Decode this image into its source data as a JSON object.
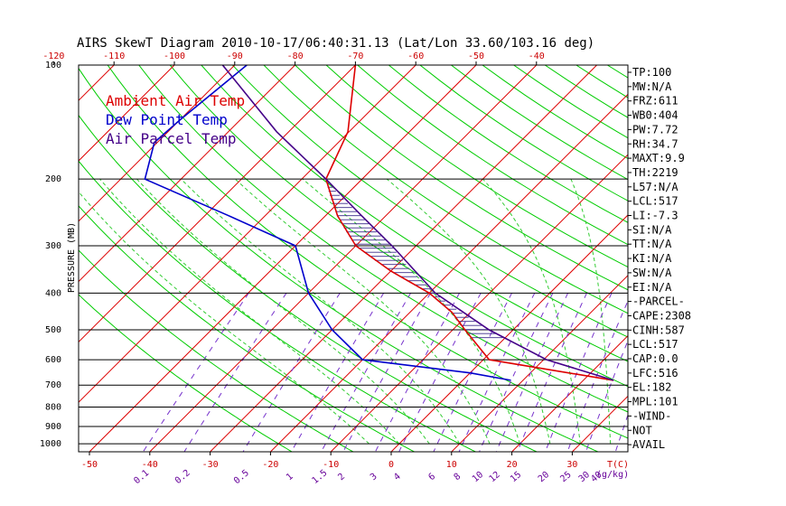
{
  "chart_data": {
    "type": "line",
    "title": "AIRS SkewT Diagram 2010-10-17/06:40:31.13 (Lat/Lon 33.60/103.16 deg)",
    "ylabel": "PRESSURE (MB)",
    "xlabel": "T(C)",
    "mixing_ratio_unit": "(g/kg)",
    "pressure_ticks": [
      "100",
      "200",
      "300",
      "400",
      "500",
      "600",
      "700",
      "800",
      "900",
      "1000"
    ],
    "pressure_values": [
      100,
      200,
      300,
      400,
      500,
      600,
      700,
      800,
      900,
      1000
    ],
    "top_temp_ticks": [
      "-120",
      "-110",
      "-100",
      "-90",
      "-80",
      "-70",
      "-60",
      "-50",
      "-40"
    ],
    "top_temp_values": [
      -120,
      -110,
      -100,
      -90,
      -80,
      -70,
      -60,
      -50,
      -40
    ],
    "bottom_temp_ticks": [
      "-50",
      "-40",
      "-30",
      "-20",
      "-10",
      "0",
      "10",
      "20",
      "30"
    ],
    "bottom_temp_values": [
      -50,
      -40,
      -30,
      -20,
      -10,
      0,
      10,
      20,
      30
    ],
    "mixing_ratio_labels": [
      "0.1",
      "0.2",
      "0.5",
      "1",
      "1.5",
      "2",
      "3",
      "4",
      "6",
      "8",
      "10",
      "12",
      "15",
      "20",
      "25",
      "30",
      "40"
    ],
    "legend": [
      {
        "label": "Ambient Air Temp",
        "color": "#dd0000"
      },
      {
        "label": "Dew Point Temp",
        "color": "#0000cc"
      },
      {
        "label": "Air Parcel Temp",
        "color": "#440088"
      }
    ],
    "series": [
      {
        "name": "Ambient Air Temp",
        "color": "#dd0000",
        "points": [
          {
            "p": 100,
            "t": -70.0
          },
          {
            "p": 150,
            "t": -60.2
          },
          {
            "p": 200,
            "t": -56.0
          },
          {
            "p": 250,
            "t": -48.0
          },
          {
            "p": 300,
            "t": -40.0
          },
          {
            "p": 350,
            "t": -30.0
          },
          {
            "p": 400,
            "t": -20.0
          },
          {
            "p": 450,
            "t": -13.0
          },
          {
            "p": 500,
            "t": -8.0
          },
          {
            "p": 600,
            "t": 1.0
          },
          {
            "p": 680,
            "t": 25.0
          }
        ]
      },
      {
        "name": "Dew Point Temp",
        "color": "#0000cc",
        "points": [
          {
            "p": 100,
            "t": -88.0
          },
          {
            "p": 140,
            "t": -90.0
          },
          {
            "p": 160,
            "t": -90.5
          },
          {
            "p": 200,
            "t": -86.0
          },
          {
            "p": 250,
            "t": -66.0
          },
          {
            "p": 300,
            "t": -50.0
          },
          {
            "p": 400,
            "t": -40.0
          },
          {
            "p": 500,
            "t": -30.0
          },
          {
            "p": 600,
            "t": -20.0
          },
          {
            "p": 650,
            "t": 0.0
          },
          {
            "p": 680,
            "t": 8.0
          }
        ]
      },
      {
        "name": "Air Parcel Temp",
        "color": "#440088",
        "points": [
          {
            "p": 100,
            "t": -92.0
          },
          {
            "p": 150,
            "t": -72.0
          },
          {
            "p": 200,
            "t": -56.0
          },
          {
            "p": 250,
            "t": -44.0
          },
          {
            "p": 300,
            "t": -34.0
          },
          {
            "p": 400,
            "t": -19.0
          },
          {
            "p": 500,
            "t": -4.0
          },
          {
            "p": 600,
            "t": 10.5
          },
          {
            "p": 680,
            "t": 25.0
          }
        ]
      }
    ],
    "indices": [
      "TP:100",
      "MW:N/A",
      "FRZ:611",
      "WB0:404",
      "PW:7.72",
      "RH:34.7",
      "MAXT:9.9",
      "TH:2219",
      "L57:N/A",
      "LCL:517",
      "LI:-7.3",
      "SI:N/A",
      "TT:N/A",
      "KI:N/A",
      "SW:N/A",
      "EI:N/A",
      "-PARCEL-",
      "CAPE:2308",
      "CINH:587",
      "LCL:517",
      "CAP:0.0",
      "LFC:516",
      "EL:182",
      "MPL:101",
      "-WIND-",
      "NOT",
      "AVAIL"
    ],
    "grid": true,
    "legend_position": "top-left"
  }
}
